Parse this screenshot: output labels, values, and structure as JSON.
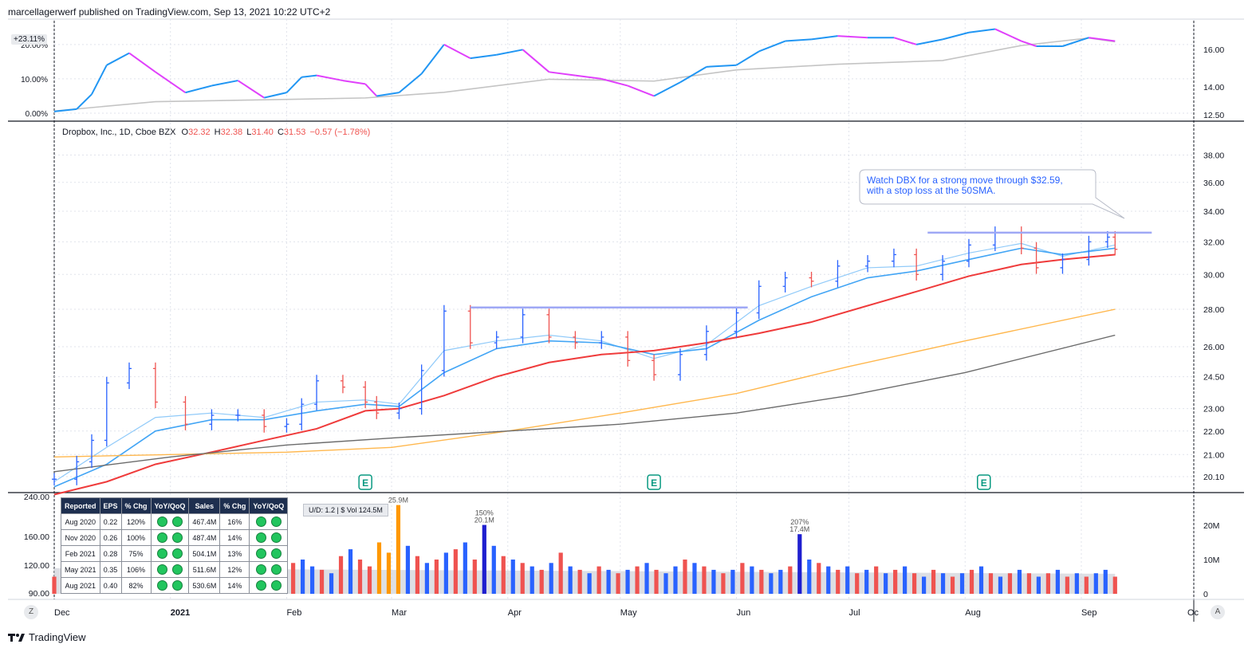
{
  "header": {
    "text": "marcellagerwerf published on TradingView.com, Sep 13, 2021 10:22 UTC+2"
  },
  "footer": {
    "brand": "TradingView",
    "logo_icon": "tradingview-logo-icon"
  },
  "rs_panel": {
    "badge": "+23.11%",
    "left_ticks": [
      "20.00%",
      "10.00%",
      "0.00%"
    ],
    "right_ticks": [
      "16.00",
      "14.00",
      "12.50"
    ]
  },
  "legend": {
    "symbol": "Dropbox, Inc., 1D, Cboe BZX",
    "o_label": "O",
    "o": "32.32",
    "h_label": "H",
    "h": "32.38",
    "l_label": "L",
    "l": "31.40",
    "c_label": "C",
    "c": "31.53",
    "change": "−0.57 (−1.78%)"
  },
  "annotation": {
    "line1": "Watch DBX for a strong move through $32.59,",
    "line2": "with a stop loss at the 50SMA."
  },
  "earnings_marker": "E",
  "volume_panel": {
    "left_ticks": [
      "240.00",
      "160.00",
      "120.00",
      "90.00"
    ],
    "right_ticks": [
      "20M",
      "10M",
      "0"
    ],
    "labels": [
      {
        "pct": "25.9M",
        "vol": ""
      },
      {
        "pct": "150%",
        "vol": "20.1M"
      },
      {
        "pct": "207%",
        "vol": "17.4M"
      }
    ],
    "ud": "U/D:  1.2   |  $ Vol  124.5M"
  },
  "x_axis": {
    "labels": [
      "Dec",
      "2021",
      "Feb",
      "Mar",
      "Apr",
      "May",
      "Jun",
      "Jul",
      "Aug",
      "Sep",
      "Oc"
    ]
  },
  "buttons": {
    "z": "Z",
    "a": "A"
  },
  "fundamentals": {
    "headers": [
      "Reported",
      "EPS",
      "% Chg",
      "YoY/QoQ",
      "Sales",
      "% Chg",
      "YoY/QoQ"
    ],
    "rows": [
      [
        "Aug 2020",
        "0.22",
        "120%",
        "467.4M",
        "16%"
      ],
      [
        "Nov 2020",
        "0.26",
        "100%",
        "487.4M",
        "14%"
      ],
      [
        "Feb 2021",
        "0.28",
        "75%",
        "504.1M",
        "13%"
      ],
      [
        "May 2021",
        "0.35",
        "106%",
        "511.6M",
        "12%"
      ],
      [
        "Aug 2021",
        "0.40",
        "82%",
        "530.6M",
        "14%"
      ]
    ]
  },
  "colors": {
    "up": "#2962ff",
    "down": "#ef5350",
    "sma10": "#90caf9",
    "sma21": "#42a5f5",
    "sma50": "#ef3b3b",
    "sma150": "#ffb74d",
    "sma200": "#6b6b6b",
    "resistance": "#9fa8f5",
    "rs_up": "#2196f3",
    "rs_down": "#e040fb",
    "rs_bench": "#c4c4c4",
    "earnings": "#089981"
  },
  "chart_data": {
    "type": "line",
    "title": "Dropbox, Inc., 1D, Cboe BZX",
    "y_ticks": [
      "38.00",
      "36.00",
      "34.00",
      "32.00",
      "30.00",
      "28.00",
      "26.00",
      "24.50",
      "23.00",
      "22.00",
      "21.00",
      "20.10"
    ],
    "y_scale": "log",
    "ylim": [
      19.6,
      39.5
    ],
    "x_range": [
      "2020-12-01",
      "2021-10-01"
    ],
    "price_close": [
      [
        "2020-12-01",
        20.0
      ],
      [
        "2020-12-07",
        20.7
      ],
      [
        "2020-12-11",
        21.6
      ],
      [
        "2020-12-15",
        24.2
      ],
      [
        "2020-12-21",
        24.9
      ],
      [
        "2020-12-28",
        23.3
      ],
      [
        "2021-01-05",
        22.3
      ],
      [
        "2021-01-12",
        22.7
      ],
      [
        "2021-01-19",
        22.7
      ],
      [
        "2021-01-26",
        22.2
      ],
      [
        "2021-02-01",
        22.3
      ],
      [
        "2021-02-05",
        23.2
      ],
      [
        "2021-02-09",
        24.3
      ],
      [
        "2021-02-16",
        24.0
      ],
      [
        "2021-02-22",
        23.3
      ],
      [
        "2021-02-25",
        22.8
      ],
      [
        "2021-03-03",
        23.0
      ],
      [
        "2021-03-09",
        24.8
      ],
      [
        "2021-03-15",
        27.9
      ],
      [
        "2021-03-22",
        26.2
      ],
      [
        "2021-03-29",
        26.5
      ],
      [
        "2021-04-05",
        27.7
      ],
      [
        "2021-04-12",
        26.5
      ],
      [
        "2021-04-19",
        26.2
      ],
      [
        "2021-04-26",
        26.5
      ],
      [
        "2021-05-03",
        25.3
      ],
      [
        "2021-05-10",
        24.6
      ],
      [
        "2021-05-17",
        25.6
      ],
      [
        "2021-05-24",
        26.8
      ],
      [
        "2021-06-01",
        27.8
      ],
      [
        "2021-06-07",
        29.3
      ],
      [
        "2021-06-14",
        29.8
      ],
      [
        "2021-06-21",
        29.6
      ],
      [
        "2021-06-28",
        30.5
      ],
      [
        "2021-07-06",
        30.8
      ],
      [
        "2021-07-13",
        31.2
      ],
      [
        "2021-07-19",
        30.0
      ],
      [
        "2021-07-26",
        30.8
      ],
      [
        "2021-08-02",
        31.8
      ],
      [
        "2021-08-09",
        32.6
      ],
      [
        "2021-08-16",
        31.6
      ],
      [
        "2021-08-20",
        30.4
      ],
      [
        "2021-08-27",
        30.9
      ],
      [
        "2021-09-03",
        32.0
      ],
      [
        "2021-09-08",
        32.3
      ],
      [
        "2021-09-10",
        31.53
      ]
    ],
    "series": [
      {
        "values": [
          [
            "2020-12-01",
            19.9
          ],
          [
            "2020-12-15",
            21.3
          ],
          [
            "2020-12-28",
            22.6
          ],
          [
            "2021-01-12",
            22.8
          ],
          [
            "2021-01-26",
            22.6
          ],
          [
            "2021-02-09",
            23.3
          ],
          [
            "2021-02-22",
            23.4
          ],
          [
            "2021-03-03",
            23.2
          ],
          [
            "2021-03-15",
            25.8
          ],
          [
            "2021-03-29",
            26.3
          ],
          [
            "2021-04-12",
            26.6
          ],
          [
            "2021-04-26",
            26.3
          ],
          [
            "2021-05-10",
            25.4
          ],
          [
            "2021-05-24",
            26.1
          ],
          [
            "2021-06-07",
            28.2
          ],
          [
            "2021-06-21",
            29.3
          ],
          [
            "2021-07-06",
            30.4
          ],
          [
            "2021-07-19",
            30.5
          ],
          [
            "2021-08-02",
            31.3
          ],
          [
            "2021-08-16",
            31.9
          ],
          [
            "2021-08-27",
            31.1
          ],
          [
            "2021-09-10",
            31.8
          ]
        ]
      },
      {
        "values": [
          [
            "2020-12-01",
            19.7
          ],
          [
            "2020-12-15",
            20.6
          ],
          [
            "2020-12-28",
            22.0
          ],
          [
            "2021-01-12",
            22.5
          ],
          [
            "2021-01-26",
            22.5
          ],
          [
            "2021-02-09",
            22.9
          ],
          [
            "2021-02-22",
            23.2
          ],
          [
            "2021-03-03",
            23.1
          ],
          [
            "2021-03-15",
            24.7
          ],
          [
            "2021-03-29",
            25.9
          ],
          [
            "2021-04-12",
            26.3
          ],
          [
            "2021-04-26",
            26.2
          ],
          [
            "2021-05-10",
            25.6
          ],
          [
            "2021-05-24",
            25.9
          ],
          [
            "2021-06-07",
            27.4
          ],
          [
            "2021-06-21",
            28.7
          ],
          [
            "2021-07-06",
            29.8
          ],
          [
            "2021-07-19",
            30.2
          ],
          [
            "2021-08-02",
            30.9
          ],
          [
            "2021-08-16",
            31.6
          ],
          [
            "2021-08-27",
            31.2
          ],
          [
            "2021-09-10",
            31.6
          ]
        ]
      },
      {
        "values": [
          [
            "2020-12-01",
            19.4
          ],
          [
            "2020-12-15",
            19.9
          ],
          [
            "2020-12-28",
            20.6
          ],
          [
            "2021-01-12",
            21.1
          ],
          [
            "2021-01-26",
            21.6
          ],
          [
            "2021-02-09",
            22.1
          ],
          [
            "2021-02-22",
            22.9
          ],
          [
            "2021-03-03",
            23.0
          ],
          [
            "2021-03-15",
            23.6
          ],
          [
            "2021-03-29",
            24.5
          ],
          [
            "2021-04-12",
            25.2
          ],
          [
            "2021-04-26",
            25.6
          ],
          [
            "2021-05-10",
            25.8
          ],
          [
            "2021-05-24",
            26.2
          ],
          [
            "2021-06-07",
            26.7
          ],
          [
            "2021-06-21",
            27.3
          ],
          [
            "2021-07-06",
            28.2
          ],
          [
            "2021-07-19",
            29.0
          ],
          [
            "2021-08-02",
            29.9
          ],
          [
            "2021-08-16",
            30.6
          ],
          [
            "2021-08-27",
            30.9
          ],
          [
            "2021-09-10",
            31.2
          ]
        ]
      },
      {
        "values": [
          [
            "2020-12-01",
            20.9
          ],
          [
            "2021-01-01",
            21.0
          ],
          [
            "2021-02-01",
            21.1
          ],
          [
            "2021-03-01",
            21.3
          ],
          [
            "2021-04-01",
            22.0
          ],
          [
            "2021-05-01",
            22.8
          ],
          [
            "2021-06-01",
            23.7
          ],
          [
            "2021-07-01",
            25.0
          ],
          [
            "2021-08-01",
            26.3
          ],
          [
            "2021-09-10",
            28.0
          ]
        ]
      },
      {
        "values": [
          [
            "2020-12-01",
            20.3
          ],
          [
            "2021-01-01",
            20.9
          ],
          [
            "2021-02-01",
            21.4
          ],
          [
            "2021-03-01",
            21.7
          ],
          [
            "2021-04-01",
            22.0
          ],
          [
            "2021-05-01",
            22.3
          ],
          [
            "2021-06-01",
            22.8
          ],
          [
            "2021-07-01",
            23.6
          ],
          [
            "2021-08-01",
            24.7
          ],
          [
            "2021-09-10",
            26.6
          ]
        ]
      }
    ],
    "resistance_lines": [
      {
        "from": "2021-03-22",
        "to": "2021-06-04",
        "y": 28.1
      },
      {
        "from": "2021-07-22",
        "to": "2021-09-30",
        "y": 32.59
      }
    ],
    "earnings_dates": [
      "2021-02-22",
      "2021-05-10",
      "2021-08-06"
    ],
    "rs_line": [
      [
        "2020-12-01",
        0.5
      ],
      [
        "2020-12-07",
        1.2
      ],
      [
        "2020-12-11",
        5.5
      ],
      [
        "2020-12-15",
        14.0
      ],
      [
        "2020-12-21",
        17.5
      ],
      [
        "2020-12-28",
        12.0
      ],
      [
        "2021-01-05",
        6.0
      ],
      [
        "2021-01-12",
        8.0
      ],
      [
        "2021-01-19",
        9.5
      ],
      [
        "2021-01-26",
        4.5
      ],
      [
        "2021-02-01",
        6.0
      ],
      [
        "2021-02-05",
        10.5
      ],
      [
        "2021-02-09",
        11.0
      ],
      [
        "2021-02-16",
        9.5
      ],
      [
        "2021-02-22",
        8.5
      ],
      [
        "2021-02-25",
        5.0
      ],
      [
        "2021-03-03",
        6.0
      ],
      [
        "2021-03-09",
        11.5
      ],
      [
        "2021-03-15",
        20.0
      ],
      [
        "2021-03-22",
        16.0
      ],
      [
        "2021-03-29",
        17.0
      ],
      [
        "2021-04-05",
        18.5
      ],
      [
        "2021-04-12",
        12.0
      ],
      [
        "2021-04-19",
        11.0
      ],
      [
        "2021-04-26",
        10.0
      ],
      [
        "2021-05-03",
        8.0
      ],
      [
        "2021-05-10",
        5.0
      ],
      [
        "2021-05-17",
        9.0
      ],
      [
        "2021-05-24",
        13.5
      ],
      [
        "2021-06-01",
        14.0
      ],
      [
        "2021-06-07",
        18.0
      ],
      [
        "2021-06-14",
        21.0
      ],
      [
        "2021-06-21",
        21.5
      ],
      [
        "2021-06-28",
        22.5
      ],
      [
        "2021-07-06",
        22.0
      ],
      [
        "2021-07-13",
        22.0
      ],
      [
        "2021-07-19",
        20.0
      ],
      [
        "2021-07-26",
        21.5
      ],
      [
        "2021-08-02",
        23.5
      ],
      [
        "2021-08-09",
        24.5
      ],
      [
        "2021-08-16",
        21.0
      ],
      [
        "2021-08-20",
        19.5
      ],
      [
        "2021-08-27",
        19.5
      ],
      [
        "2021-09-03",
        22.0
      ],
      [
        "2021-09-10",
        21.0
      ]
    ],
    "rs_benchmark": [
      [
        "2020-12-01",
        12.7
      ],
      [
        "2020-12-28",
        13.2
      ],
      [
        "2021-01-26",
        13.3
      ],
      [
        "2021-02-22",
        13.4
      ],
      [
        "2021-03-15",
        13.7
      ],
      [
        "2021-04-12",
        14.4
      ],
      [
        "2021-05-10",
        14.3
      ],
      [
        "2021-06-01",
        14.9
      ],
      [
        "2021-06-28",
        15.2
      ],
      [
        "2021-07-26",
        15.4
      ],
      [
        "2021-08-16",
        16.2
      ],
      [
        "2021-09-03",
        16.6
      ],
      [
        "2021-09-10",
        16.4
      ]
    ],
    "volume": [
      [
        5,
        0
      ],
      [
        7,
        0
      ],
      [
        9,
        1
      ],
      [
        11,
        0
      ],
      [
        7,
        1
      ],
      [
        8,
        0
      ],
      [
        6,
        1
      ],
      [
        9,
        1
      ],
      [
        10,
        0
      ],
      [
        8,
        1
      ],
      [
        7,
        0
      ],
      [
        6,
        1
      ],
      [
        8,
        0
      ],
      [
        12,
        1
      ],
      [
        9,
        0
      ],
      [
        7,
        1
      ],
      [
        6,
        0
      ],
      [
        5,
        1
      ],
      [
        7,
        0
      ],
      [
        9,
        1
      ],
      [
        8,
        0
      ],
      [
        6,
        1
      ],
      [
        7,
        1
      ],
      [
        5,
        0
      ],
      [
        6,
        1
      ],
      [
        9,
        0
      ],
      [
        10,
        1
      ],
      [
        8,
        1
      ],
      [
        7,
        0
      ],
      [
        6,
        1
      ],
      [
        11,
        0
      ],
      [
        13,
        1
      ],
      [
        10,
        0
      ],
      [
        8,
        0
      ],
      [
        15,
        2
      ],
      [
        12,
        2
      ],
      [
        25.9,
        2
      ],
      [
        14,
        1
      ],
      [
        11,
        0
      ],
      [
        9,
        1
      ],
      [
        10,
        0
      ],
      [
        12,
        1
      ],
      [
        13,
        0
      ],
      [
        15,
        1
      ],
      [
        10,
        0
      ],
      [
        20.1,
        3
      ],
      [
        14,
        1
      ],
      [
        11,
        0
      ],
      [
        10,
        1
      ],
      [
        9,
        0
      ],
      [
        8,
        1
      ],
      [
        7,
        0
      ],
      [
        9,
        1
      ],
      [
        12,
        0
      ],
      [
        8,
        1
      ],
      [
        7,
        0
      ],
      [
        6,
        1
      ],
      [
        8,
        0
      ],
      [
        7,
        1
      ],
      [
        6,
        0
      ],
      [
        7,
        1
      ],
      [
        8,
        0
      ],
      [
        9,
        1
      ],
      [
        7,
        0
      ],
      [
        6,
        1
      ],
      [
        8,
        1
      ],
      [
        10,
        0
      ],
      [
        9,
        1
      ],
      [
        8,
        0
      ],
      [
        7,
        1
      ],
      [
        6,
        0
      ],
      [
        7,
        1
      ],
      [
        9,
        0
      ],
      [
        8,
        1
      ],
      [
        7,
        0
      ],
      [
        6,
        1
      ],
      [
        7,
        1
      ],
      [
        8,
        0
      ],
      [
        17.4,
        3
      ],
      [
        10,
        1
      ],
      [
        9,
        0
      ],
      [
        8,
        1
      ],
      [
        7,
        0
      ],
      [
        8,
        1
      ],
      [
        6,
        0
      ],
      [
        7,
        1
      ],
      [
        8,
        0
      ],
      [
        6,
        1
      ],
      [
        7,
        0
      ],
      [
        8,
        1
      ],
      [
        6,
        0
      ],
      [
        5,
        1
      ],
      [
        7,
        0
      ],
      [
        6,
        1
      ],
      [
        5,
        0
      ],
      [
        6,
        1
      ],
      [
        7,
        0
      ],
      [
        8,
        1
      ],
      [
        6,
        0
      ],
      [
        5,
        1
      ],
      [
        6,
        0
      ],
      [
        7,
        1
      ],
      [
        6,
        0
      ],
      [
        5,
        1
      ],
      [
        6,
        0
      ],
      [
        7,
        1
      ],
      [
        5,
        0
      ],
      [
        6,
        1
      ],
      [
        5,
        0
      ],
      [
        6,
        1
      ],
      [
        7,
        1
      ],
      [
        5,
        0
      ]
    ]
  }
}
